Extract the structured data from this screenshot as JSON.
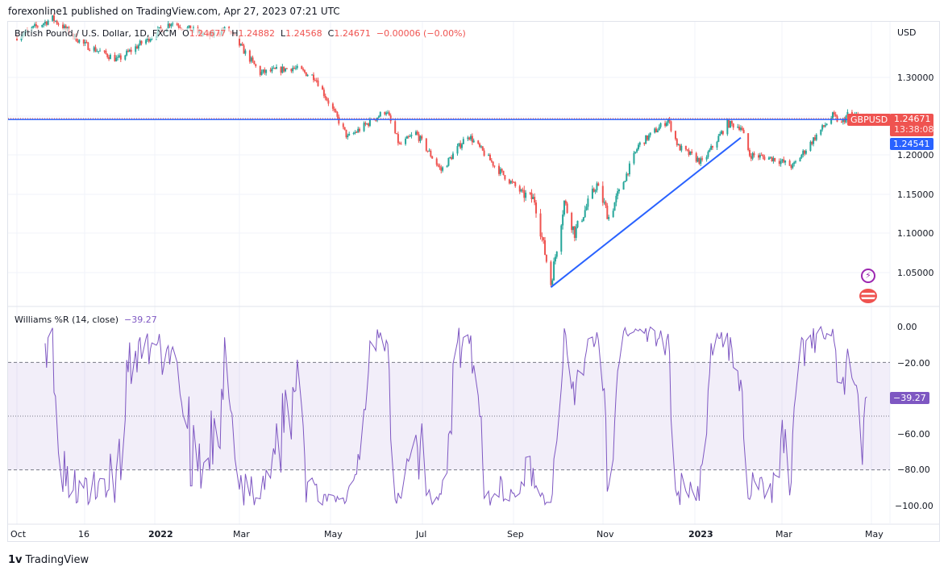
{
  "header": {
    "published": "forexonline1 published on TradingView.com, Apr 27, 2023 07:21 UTC"
  },
  "legend": {
    "symbol": "British Pound / U.S. Dollar, 1D, FXCM",
    "o_label": "O",
    "o": "1.24677",
    "h_label": "H",
    "h": "1.24882",
    "l_label": "L",
    "l": "1.24568",
    "c_label": "C",
    "c": "1.24671",
    "change": "−0.00006 (−0.00%)"
  },
  "price_axis": {
    "currency": "USD",
    "ticks": [
      "1.30000",
      "1.20000",
      "1.15000",
      "1.10000",
      "1.05000"
    ],
    "symbol_tag": "GBPUSD",
    "last_price": "1.24671",
    "countdown": "13:38:08",
    "line_price": "1.24541"
  },
  "indicator": {
    "title": "Williams %R (14, close)",
    "value": "−39.27",
    "ticks": [
      "0.00",
      "−20.00",
      "−60.00",
      "−80.00",
      "−100.00"
    ],
    "value_tag": "−39.27"
  },
  "time_axis": {
    "ticks": [
      "Oct",
      "16",
      "2022",
      "Mar",
      "May",
      "Jul",
      "Sep",
      "Nov",
      "2023",
      "Mar",
      "May"
    ]
  },
  "footer": {
    "brand": "TradingView"
  },
  "colors": {
    "up": "#26a69a",
    "down": "#ef5350",
    "drawing": "#2962ff",
    "indicator": "#7e57c2",
    "last_price": "#ef5350"
  },
  "chart_data": {
    "type": "candlestick",
    "title": "British Pound / U.S. Dollar, 1D, FXCM",
    "ylabel": "USD",
    "ylim": [
      1.02,
      1.375
    ],
    "approx_close_path": [
      [
        "2021-10-01",
        1.352
      ],
      [
        "2021-10-25",
        1.375
      ],
      [
        "2021-11-15",
        1.342
      ],
      [
        "2021-12-08",
        1.322
      ],
      [
        "2022-01-13",
        1.37
      ],
      [
        "2022-02-07",
        1.352
      ],
      [
        "2022-02-20",
        1.362
      ],
      [
        "2022-03-14",
        1.305
      ],
      [
        "2022-04-05",
        1.312
      ],
      [
        "2022-04-20",
        1.3
      ],
      [
        "2022-05-12",
        1.222
      ],
      [
        "2022-06-07",
        1.257
      ],
      [
        "2022-06-16",
        1.212
      ],
      [
        "2022-06-27",
        1.228
      ],
      [
        "2022-07-14",
        1.18
      ],
      [
        "2022-08-01",
        1.226
      ],
      [
        "2022-08-22",
        1.18
      ],
      [
        "2022-09-07",
        1.15
      ],
      [
        "2022-09-15",
        1.142
      ],
      [
        "2022-09-26",
        1.035
      ],
      [
        "2022-10-05",
        1.14
      ],
      [
        "2022-10-12",
        1.1
      ],
      [
        "2022-10-27",
        1.162
      ],
      [
        "2022-11-04",
        1.12
      ],
      [
        "2022-11-24",
        1.212
      ],
      [
        "2022-12-14",
        1.245
      ],
      [
        "2022-12-21",
        1.21
      ],
      [
        "2023-01-06",
        1.19
      ],
      [
        "2023-01-23",
        1.24
      ],
      [
        "2023-02-01",
        1.236
      ],
      [
        "2023-02-07",
        1.2
      ],
      [
        "2023-02-24",
        1.195
      ],
      [
        "2023-03-08",
        1.185
      ],
      [
        "2023-03-24",
        1.225
      ],
      [
        "2023-04-04",
        1.25
      ],
      [
        "2023-04-10",
        1.24
      ],
      [
        "2023-04-14",
        1.252
      ],
      [
        "2023-04-27",
        1.24671
      ]
    ],
    "horizontal_line": 1.24541,
    "trend_line": [
      [
        "2022-09-26",
        1.03
      ],
      [
        "2023-02-01",
        1.222
      ]
    ],
    "williams_r": {
      "period": 14,
      "last": -39.27,
      "levels": [
        -20,
        -50,
        -80
      ],
      "ylim": [
        -100,
        0
      ]
    }
  }
}
